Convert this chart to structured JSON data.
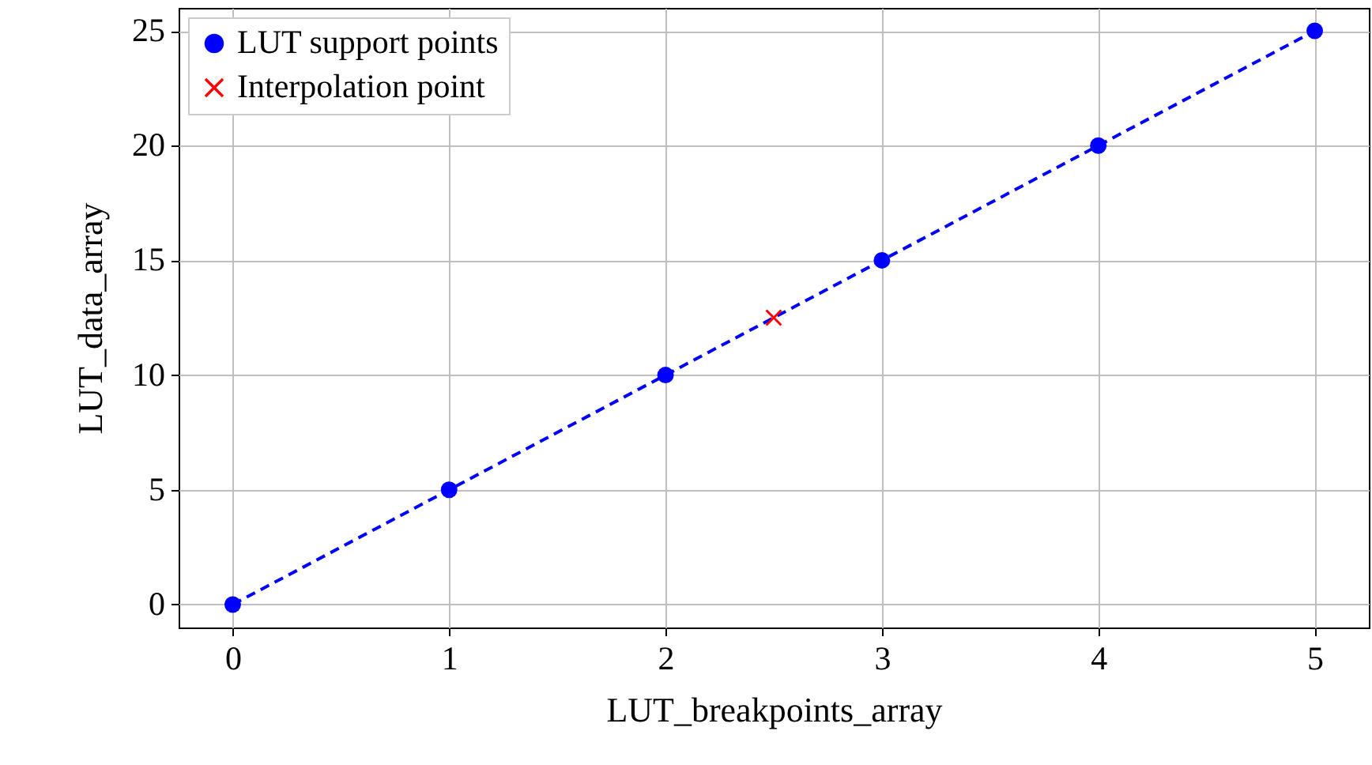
{
  "chart_data": {
    "type": "line",
    "xlabel": "LUT_breakpoints_array",
    "ylabel": "LUT_data_array",
    "xlim": [
      -0.25,
      5.25
    ],
    "ylim": [
      -1,
      26
    ],
    "xticks": [
      0,
      1,
      2,
      3,
      4,
      5
    ],
    "yticks": [
      0,
      5,
      10,
      15,
      20,
      25
    ],
    "grid": true,
    "legend": "top left",
    "series": [
      {
        "name": "LUT support points",
        "type": "line",
        "color": "#0000ff",
        "marker": "circle",
        "line_style": "dashed",
        "x": [
          0,
          1,
          2,
          3,
          4,
          5
        ],
        "values": [
          0,
          5,
          10,
          15,
          20,
          25
        ]
      },
      {
        "name": "Interpolation point",
        "type": "scatter",
        "color": "#ff0000",
        "marker": "cross",
        "x": [
          2.5
        ],
        "values": [
          12.5
        ]
      }
    ]
  }
}
